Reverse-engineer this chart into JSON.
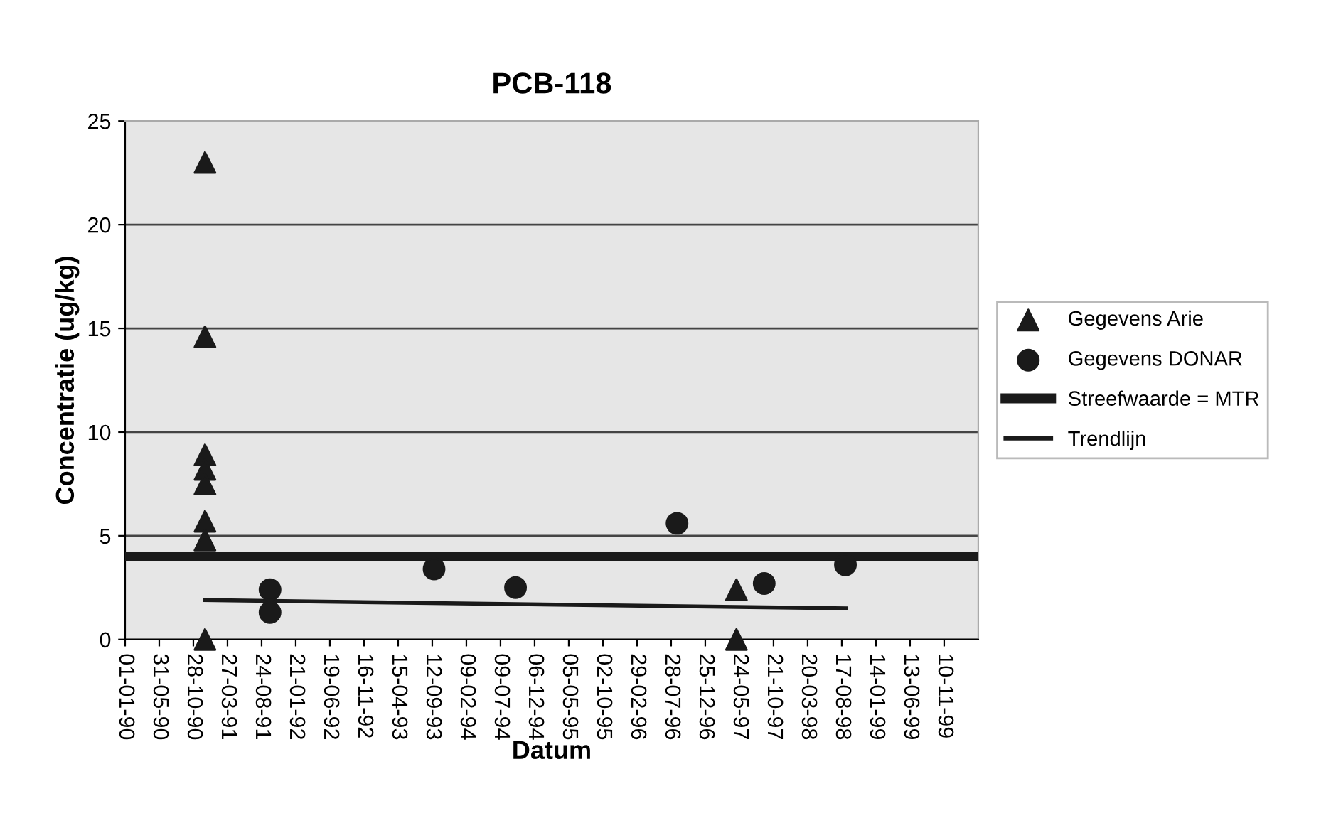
{
  "chart_data": {
    "type": "scatter",
    "title": "PCB-118",
    "xlabel": "Datum",
    "ylabel": "Concentratie (ug/kg)",
    "series": [
      {
        "name": "Gegevens Arie",
        "marker": "triangle",
        "color": "#1a1a1a",
        "x": [
          "1990-12-18",
          "1990-12-18",
          "1990-12-18",
          "1990-12-18",
          "1990-12-18",
          "1990-12-18",
          "1990-12-18",
          "1990-12-18",
          "1997-05-11",
          "1997-05-11"
        ],
        "values": [
          23,
          14.6,
          8.9,
          8.2,
          7.5,
          5.7,
          4.8,
          0,
          2.4,
          0
        ]
      },
      {
        "name": "Gegevens DONAR",
        "marker": "circle",
        "color": "#1a1a1a",
        "x": [
          "1991-09-30",
          "1991-09-30",
          "1993-09-20",
          "1994-09-13",
          "1996-08-23",
          "1997-09-10",
          "1998-09-02"
        ],
        "values": [
          2.4,
          1.3,
          3.4,
          2.5,
          5.6,
          2.7,
          3.6
        ]
      },
      {
        "name": "Trendlijn",
        "type": "line",
        "marker": "none",
        "color": "#1a1a1a",
        "x": [
          "1990-12-18",
          "1998-09-05"
        ],
        "values": [
          1.9,
          1.5
        ]
      }
    ],
    "ref_lines": [
      {
        "axis": "y",
        "value": 4.0,
        "label": "Streefwaarde = MTR",
        "color": "#1a1a1a"
      }
    ],
    "xlim": [
      "1990-01-01",
      "2000-04-08"
    ],
    "xticks": [
      {
        "value": "1990-01-01",
        "label": "01-01-90"
      },
      {
        "value": "1990-05-31",
        "label": "31-05-90"
      },
      {
        "value": "1990-10-28",
        "label": "28-10-90"
      },
      {
        "value": "1991-03-27",
        "label": "27-03-91"
      },
      {
        "value": "1991-08-24",
        "label": "24-08-91"
      },
      {
        "value": "1992-01-21",
        "label": "21-01-92"
      },
      {
        "value": "1992-06-19",
        "label": "19-06-92"
      },
      {
        "value": "1992-11-16",
        "label": "16-11-92"
      },
      {
        "value": "1993-04-15",
        "label": "15-04-93"
      },
      {
        "value": "1993-09-12",
        "label": "12-09-93"
      },
      {
        "value": "1994-02-09",
        "label": "09-02-94"
      },
      {
        "value": "1994-07-09",
        "label": "09-07-94"
      },
      {
        "value": "1994-12-06",
        "label": "06-12-94"
      },
      {
        "value": "1995-05-05",
        "label": "05-05-95"
      },
      {
        "value": "1995-10-02",
        "label": "02-10-95"
      },
      {
        "value": "1996-02-29",
        "label": "29-02-96"
      },
      {
        "value": "1996-07-28",
        "label": "28-07-96"
      },
      {
        "value": "1996-12-25",
        "label": "25-12-96"
      },
      {
        "value": "1997-05-24",
        "label": "24-05-97"
      },
      {
        "value": "1997-10-21",
        "label": "21-10-97"
      },
      {
        "value": "1998-03-20",
        "label": "20-03-98"
      },
      {
        "value": "1998-08-17",
        "label": "17-08-98"
      },
      {
        "value": "1999-01-14",
        "label": "14-01-99"
      },
      {
        "value": "1999-06-13",
        "label": "13-06-99"
      },
      {
        "value": "1999-11-10",
        "label": "10-11-99"
      }
    ],
    "ylim": [
      0,
      25
    ],
    "yticks": [
      0,
      5,
      10,
      15,
      20,
      25
    ],
    "grid": "y",
    "legend": "right"
  }
}
